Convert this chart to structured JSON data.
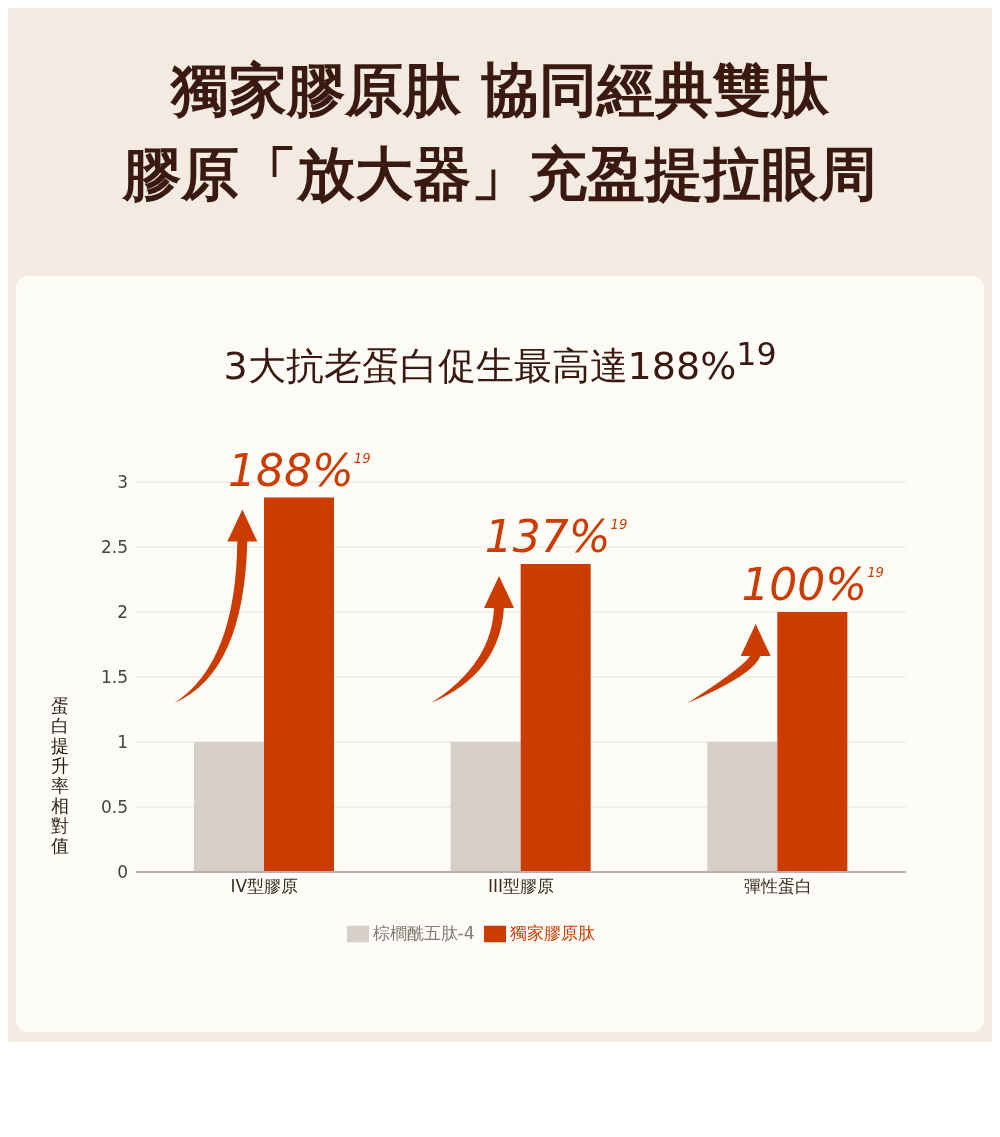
{
  "chart_data": {
    "type": "bar",
    "title": "獨家膠原肽 協同經典雙肽",
    "subtitle": "膠原「放大器」充盈提拉眼周",
    "ylabel": "蛋白提升率相對值",
    "categories": [
      "IV型膠原",
      "III型膠原",
      "彈性蛋白"
    ],
    "series": [
      {
        "name": "棕櫚酰五肽-4",
        "color": "#d6cec8",
        "values": [
          1,
          1,
          1
        ]
      },
      {
        "name": "獨家膠原肽",
        "color": "#cc3b00",
        "values": [
          2.88,
          2.37,
          2.0
        ]
      }
    ],
    "ylim": [
      0,
      3
    ],
    "yticks": [
      0,
      0.5,
      1,
      1.5,
      2,
      2.5,
      3
    ],
    "grid": "y",
    "legend": "bottom",
    "annotations": [
      "3大抗老蛋白促生最高達188%$^{19}$",
      {
        "text": "188%$^{19}$",
        "x": "IV型膠原",
        "y": 2.88
      },
      {
        "text": "137%$^{19}$",
        "x": "III型膠原",
        "y": 2.37
      },
      {
        "text": "100%$^{19}$",
        "x": "彈性蛋白",
        "y": 2.0
      }
    ]
  }
}
